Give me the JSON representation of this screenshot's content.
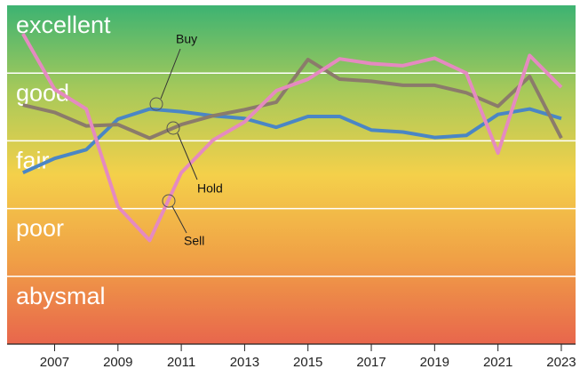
{
  "chart_data": {
    "type": "line",
    "bands": [
      "abysmal",
      "poor",
      "fair",
      "good",
      "excellent"
    ],
    "x": [
      2006,
      2007,
      2008,
      2009,
      2010,
      2011,
      2012,
      2013,
      2014,
      2015,
      2016,
      2017,
      2018,
      2019,
      2020,
      2021,
      2022,
      2023
    ],
    "series": [
      {
        "name": "Buy",
        "color": "#4a86c5",
        "values": [
          2.53,
          2.74,
          2.87,
          3.32,
          3.47,
          3.43,
          3.37,
          3.33,
          3.2,
          3.36,
          3.36,
          3.16,
          3.13,
          3.05,
          3.08,
          3.39,
          3.47,
          3.33
        ]
      },
      {
        "name": "Hold",
        "color": "#8b7b6b",
        "values": [
          3.53,
          3.42,
          3.22,
          3.24,
          3.04,
          3.24,
          3.37,
          3.46,
          3.57,
          4.2,
          3.91,
          3.88,
          3.82,
          3.82,
          3.71,
          3.51,
          3.95,
          3.04
        ]
      },
      {
        "name": "Sell",
        "color": "#e58ac0",
        "values": [
          4.58,
          3.76,
          3.47,
          2.03,
          1.53,
          2.53,
          3.01,
          3.28,
          3.74,
          3.91,
          4.21,
          4.14,
          4.11,
          4.22,
          4.0,
          2.82,
          4.26,
          3.79
        ]
      }
    ],
    "xlim": [
      2005.5,
      2023.45
    ],
    "xticks": [
      2007,
      2009,
      2011,
      2013,
      2015,
      2017,
      2019,
      2021,
      2023
    ],
    "ylim": [
      0,
      5
    ],
    "grid": true
  }
}
